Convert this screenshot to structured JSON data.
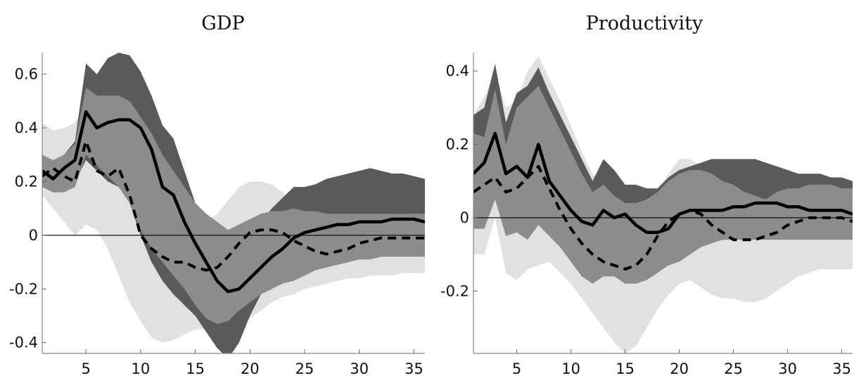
{
  "chart_data": [
    {
      "type": "line",
      "title": "GDP",
      "xlabel": "",
      "ylabel": "",
      "xlim": [
        1,
        36
      ],
      "ylim": [
        -0.44,
        0.68
      ],
      "xticks": [
        5,
        10,
        15,
        20,
        25,
        30,
        35
      ],
      "xtick_labels": [
        "5",
        "10",
        "15",
        "20",
        "25",
        "30",
        "35"
      ],
      "yticks": [
        -0.4,
        -0.2,
        0,
        0.2,
        0.4,
        0.6
      ],
      "ytick_labels": [
        "-0.4",
        "-0.2",
        "0",
        "0.2",
        "0.4",
        "0.6"
      ],
      "zero_line": true,
      "grid": false,
      "x": [
        1,
        2,
        3,
        4,
        5,
        6,
        7,
        8,
        9,
        10,
        11,
        12,
        13,
        14,
        15,
        16,
        17,
        18,
        19,
        20,
        21,
        22,
        23,
        24,
        25,
        26,
        27,
        28,
        29,
        30,
        31,
        32,
        33,
        34,
        35,
        36
      ],
      "bands": [
        {
          "color": "#e1e1e1",
          "upper": [
            0.42,
            0.39,
            0.4,
            0.42,
            0.48,
            0.5,
            0.52,
            0.53,
            0.53,
            0.5,
            0.42,
            0.32,
            0.22,
            0.14,
            0.08,
            0.05,
            0.08,
            0.13,
            0.18,
            0.2,
            0.2,
            0.19,
            0.16,
            0.12,
            0.09,
            0.06,
            0.04,
            0.02,
            0.01,
            0.0,
            0.0,
            -0.01,
            -0.01,
            -0.01,
            -0.02,
            -0.02
          ],
          "lower": [
            0.15,
            0.1,
            0.05,
            0.0,
            0.04,
            0.02,
            -0.05,
            -0.15,
            -0.25,
            -0.32,
            -0.38,
            -0.4,
            -0.39,
            -0.37,
            -0.35,
            -0.35,
            -0.34,
            -0.33,
            -0.32,
            -0.31,
            -0.28,
            -0.25,
            -0.23,
            -0.22,
            -0.2,
            -0.19,
            -0.18,
            -0.17,
            -0.16,
            -0.16,
            -0.15,
            -0.15,
            -0.15,
            -0.14,
            -0.14,
            -0.14
          ]
        },
        {
          "color": "#5a5a5a",
          "upper": [
            0.28,
            0.27,
            0.3,
            0.35,
            0.64,
            0.6,
            0.66,
            0.68,
            0.67,
            0.61,
            0.52,
            0.41,
            0.36,
            0.24,
            0.12,
            0.05,
            0.02,
            -0.01,
            0.0,
            0.02,
            0.05,
            0.1,
            0.14,
            0.18,
            0.18,
            0.19,
            0.21,
            0.22,
            0.23,
            0.24,
            0.25,
            0.24,
            0.23,
            0.23,
            0.22,
            0.21
          ],
          "lower": [
            0.18,
            0.17,
            0.18,
            0.2,
            0.28,
            0.24,
            0.2,
            0.18,
            0.12,
            0.0,
            -0.1,
            -0.17,
            -0.22,
            -0.26,
            -0.3,
            -0.36,
            -0.42,
            -0.46,
            -0.4,
            -0.3,
            -0.22,
            -0.15,
            -0.1,
            -0.06,
            -0.03,
            -0.01,
            0.0,
            0.01,
            0.01,
            0.02,
            0.02,
            0.02,
            0.02,
            0.02,
            0.02,
            0.02
          ]
        },
        {
          "color": "#8c8c8c",
          "upper": [
            0.3,
            0.28,
            0.3,
            0.34,
            0.55,
            0.52,
            0.52,
            0.52,
            0.5,
            0.44,
            0.38,
            0.3,
            0.24,
            0.18,
            0.12,
            0.08,
            0.05,
            0.02,
            0.04,
            0.06,
            0.08,
            0.09,
            0.09,
            0.1,
            0.09,
            0.09,
            0.08,
            0.08,
            0.08,
            0.08,
            0.08,
            0.08,
            0.08,
            0.08,
            0.08,
            0.08
          ],
          "lower": [
            0.18,
            0.16,
            0.16,
            0.18,
            0.3,
            0.26,
            0.22,
            0.18,
            0.12,
            0.02,
            -0.05,
            -0.1,
            -0.15,
            -0.2,
            -0.26,
            -0.31,
            -0.33,
            -0.32,
            -0.28,
            -0.25,
            -0.22,
            -0.2,
            -0.18,
            -0.17,
            -0.15,
            -0.13,
            -0.12,
            -0.11,
            -0.1,
            -0.09,
            -0.09,
            -0.08,
            -0.08,
            -0.08,
            -0.08,
            -0.08
          ]
        }
      ],
      "series": [
        {
          "style": "solid",
          "values": [
            0.24,
            0.21,
            0.25,
            0.28,
            0.46,
            0.4,
            0.42,
            0.43,
            0.43,
            0.4,
            0.32,
            0.18,
            0.15,
            0.05,
            -0.03,
            -0.1,
            -0.17,
            -0.21,
            -0.2,
            -0.16,
            -0.12,
            -0.08,
            -0.05,
            -0.01,
            0.01,
            0.02,
            0.03,
            0.04,
            0.04,
            0.05,
            0.05,
            0.05,
            0.06,
            0.06,
            0.06,
            0.05
          ]
        },
        {
          "style": "dashed",
          "values": [
            0.22,
            0.25,
            0.22,
            0.2,
            0.35,
            0.24,
            0.22,
            0.25,
            0.15,
            0.0,
            -0.05,
            -0.08,
            -0.1,
            -0.1,
            -0.12,
            -0.13,
            -0.12,
            -0.08,
            -0.03,
            0.01,
            0.02,
            0.02,
            0.01,
            -0.02,
            -0.04,
            -0.06,
            -0.07,
            -0.06,
            -0.05,
            -0.03,
            -0.02,
            -0.01,
            -0.01,
            -0.01,
            -0.01,
            -0.01
          ]
        }
      ]
    },
    {
      "type": "line",
      "title": "Productivity",
      "xlabel": "",
      "ylabel": "",
      "xlim": [
        1,
        36
      ],
      "ylim": [
        -0.37,
        0.45
      ],
      "xticks": [
        5,
        10,
        15,
        20,
        25,
        30,
        35
      ],
      "xtick_labels": [
        "5",
        "10",
        "15",
        "20",
        "25",
        "30",
        "35"
      ],
      "yticks": [
        -0.2,
        0,
        0.2,
        0.4
      ],
      "ytick_labels": [
        "-0.2",
        "0",
        "0.2",
        "0.4"
      ],
      "zero_line": true,
      "grid": false,
      "x": [
        1,
        2,
        3,
        4,
        5,
        6,
        7,
        8,
        9,
        10,
        11,
        12,
        13,
        14,
        15,
        16,
        17,
        18,
        19,
        20,
        21,
        22,
        23,
        24,
        25,
        26,
        27,
        28,
        29,
        30,
        31,
        32,
        33,
        34,
        35,
        36
      ],
      "bands": [
        {
          "color": "#e1e1e1",
          "upper": [
            0.28,
            0.33,
            0.4,
            0.3,
            0.32,
            0.4,
            0.44,
            0.38,
            0.32,
            0.25,
            0.18,
            0.12,
            0.08,
            0.04,
            0.02,
            0.02,
            0.04,
            0.07,
            0.12,
            0.16,
            0.16,
            0.14,
            0.12,
            0.1,
            0.08,
            0.07,
            0.06,
            0.05,
            0.05,
            0.05,
            0.05,
            0.05,
            0.05,
            0.05,
            0.05,
            0.05
          ],
          "lower": [
            -0.1,
            -0.1,
            0.0,
            -0.15,
            -0.17,
            -0.14,
            -0.13,
            -0.12,
            -0.15,
            -0.18,
            -0.22,
            -0.26,
            -0.3,
            -0.34,
            -0.37,
            -0.35,
            -0.3,
            -0.25,
            -0.21,
            -0.18,
            -0.17,
            -0.19,
            -0.21,
            -0.22,
            -0.22,
            -0.23,
            -0.23,
            -0.22,
            -0.2,
            -0.18,
            -0.16,
            -0.15,
            -0.14,
            -0.14,
            -0.14,
            -0.14
          ]
        },
        {
          "color": "#5a5a5a",
          "upper": [
            0.28,
            0.3,
            0.42,
            0.26,
            0.34,
            0.36,
            0.41,
            0.34,
            0.28,
            0.22,
            0.16,
            0.1,
            0.16,
            0.13,
            0.09,
            0.09,
            0.08,
            0.08,
            0.11,
            0.13,
            0.14,
            0.15,
            0.16,
            0.16,
            0.16,
            0.16,
            0.16,
            0.15,
            0.14,
            0.13,
            0.12,
            0.12,
            0.12,
            0.11,
            0.11,
            0.1
          ],
          "lower": [
            0.0,
            0.0,
            0.1,
            0.0,
            0.0,
            0.0,
            0.08,
            0.05,
            0.02,
            0.0,
            -0.02,
            -0.04,
            -0.02,
            -0.04,
            -0.05,
            -0.04,
            -0.03,
            -0.02,
            -0.01,
            0.0,
            0.02,
            0.04,
            0.05,
            0.06,
            0.06,
            0.06,
            0.05,
            0.05,
            0.05,
            0.05,
            0.04,
            0.04,
            0.04,
            0.04,
            0.04,
            0.04
          ]
        },
        {
          "color": "#8c8c8c",
          "upper": [
            0.23,
            0.22,
            0.35,
            0.2,
            0.3,
            0.33,
            0.36,
            0.3,
            0.24,
            0.18,
            0.12,
            0.07,
            0.09,
            0.06,
            0.04,
            0.04,
            0.05,
            0.07,
            0.1,
            0.12,
            0.13,
            0.13,
            0.12,
            0.1,
            0.09,
            0.07,
            0.06,
            0.05,
            0.07,
            0.08,
            0.08,
            0.09,
            0.09,
            0.09,
            0.08,
            0.08
          ],
          "lower": [
            -0.03,
            -0.03,
            0.05,
            -0.05,
            -0.04,
            -0.06,
            -0.02,
            -0.05,
            -0.08,
            -0.12,
            -0.16,
            -0.18,
            -0.16,
            -0.16,
            -0.18,
            -0.18,
            -0.17,
            -0.15,
            -0.13,
            -0.12,
            -0.1,
            -0.08,
            -0.07,
            -0.06,
            -0.06,
            -0.06,
            -0.06,
            -0.06,
            -0.06,
            -0.06,
            -0.06,
            -0.06,
            -0.06,
            -0.06,
            -0.06,
            -0.06
          ]
        }
      ],
      "series": [
        {
          "style": "solid",
          "values": [
            0.12,
            0.15,
            0.23,
            0.12,
            0.14,
            0.11,
            0.2,
            0.1,
            0.06,
            0.02,
            -0.01,
            -0.02,
            0.02,
            0.0,
            0.01,
            -0.02,
            -0.04,
            -0.04,
            -0.03,
            0.01,
            0.02,
            0.02,
            0.02,
            0.02,
            0.03,
            0.03,
            0.04,
            0.04,
            0.04,
            0.03,
            0.03,
            0.02,
            0.02,
            0.02,
            0.02,
            0.01
          ]
        },
        {
          "style": "dashed",
          "values": [
            0.07,
            0.09,
            0.11,
            0.07,
            0.08,
            0.11,
            0.14,
            0.08,
            0.02,
            -0.03,
            -0.07,
            -0.1,
            -0.12,
            -0.13,
            -0.14,
            -0.13,
            -0.1,
            -0.05,
            -0.01,
            0.01,
            0.02,
            0.01,
            -0.02,
            -0.04,
            -0.06,
            -0.06,
            -0.06,
            -0.05,
            -0.04,
            -0.02,
            -0.01,
            0.0,
            0.0,
            0.0,
            0.0,
            -0.01
          ]
        }
      ]
    }
  ]
}
